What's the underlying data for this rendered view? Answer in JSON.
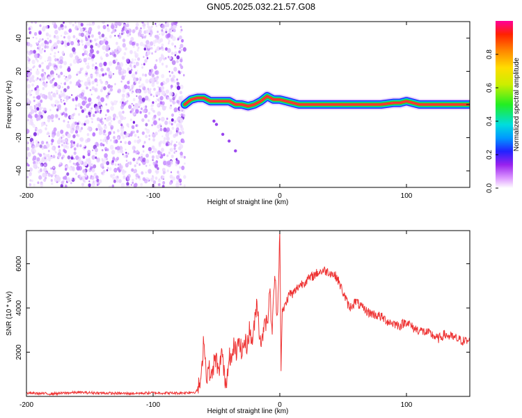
{
  "title": "GN05.2025.032.21.57.G08",
  "chart_data": [
    {
      "type": "heatmap",
      "xlabel": "Height of straight line (km)",
      "ylabel": "Frequency (Hz)",
      "xlim": [
        -200,
        150
      ],
      "ylim": [
        -50,
        50
      ],
      "x_ticks": [
        "-200",
        "-100",
        "0",
        "100"
      ],
      "y_ticks": [
        "40",
        "20",
        "0",
        "-20",
        "-40"
      ],
      "colorbar": {
        "label": "Normalized spectral amplitude",
        "range": [
          0,
          1
        ],
        "ticks": [
          "0.0",
          "0.2",
          "0.4",
          "0.6",
          "0.8"
        ]
      },
      "noise_region_x": [
        -200,
        -75
      ],
      "trace": {
        "x": [
          -75,
          -70,
          -65,
          -60,
          -55,
          -50,
          -45,
          -40,
          -35,
          -30,
          -25,
          -20,
          -15,
          -10,
          -5,
          0,
          5,
          10,
          15,
          20,
          40,
          60,
          80,
          90,
          95,
          100,
          105,
          110,
          130,
          150
        ],
        "y": [
          0,
          3,
          4,
          4,
          2,
          2,
          2,
          2,
          0,
          0,
          -1,
          0,
          2,
          5,
          3,
          3,
          2,
          1,
          0,
          0,
          0,
          0,
          0,
          1,
          1,
          2,
          1,
          0,
          0,
          0
        ]
      },
      "scattered_points": [
        {
          "x": -52,
          "y": -10
        },
        {
          "x": -50,
          "y": -12
        },
        {
          "x": -45,
          "y": -18
        },
        {
          "x": -40,
          "y": -22
        },
        {
          "x": -35,
          "y": -28
        }
      ]
    },
    {
      "type": "line",
      "xlabel": "Height of straight line (km)",
      "ylabel": "SNR (10 * v/v)",
      "xlim": [
        -200,
        150
      ],
      "ylim": [
        0,
        7500
      ],
      "x_ticks": [
        "-200",
        "-100",
        "0",
        "100"
      ],
      "y_ticks": [
        "6000",
        "4000",
        "2000"
      ],
      "color": "#ee3333",
      "series": [
        {
          "x": [
            -200,
            -180,
            -160,
            -140,
            -120,
            -100,
            -80,
            -66,
            -62,
            -60,
            -58,
            -56,
            -54,
            -52,
            -50,
            -48,
            -46,
            -44,
            -42,
            -40,
            -38,
            -36,
            -34,
            -32,
            -30,
            -28,
            -26,
            -24,
            -22,
            -20,
            -18,
            -16,
            -14,
            -12,
            -10,
            -8,
            -6,
            -4,
            -2,
            0,
            1,
            2,
            4,
            6,
            8,
            10,
            15,
            20,
            25,
            30,
            35,
            40,
            45,
            50,
            55,
            60,
            65,
            70,
            75,
            80,
            85,
            90,
            95,
            100,
            105,
            110,
            115,
            120,
            125,
            130,
            135,
            140,
            145,
            150
          ],
          "y": [
            150,
            120,
            180,
            150,
            130,
            160,
            150,
            200,
            700,
            2800,
            900,
            1300,
            800,
            1500,
            1700,
            900,
            2200,
            1000,
            600,
            2100,
            1500,
            2400,
            1800,
            2700,
            1900,
            2500,
            2300,
            3000,
            2500,
            3200,
            4400,
            2800,
            2400,
            3700,
            3100,
            4800,
            2900,
            5600,
            3500,
            7500,
            1300,
            3800,
            4100,
            4400,
            4700,
            4600,
            5000,
            5200,
            5400,
            5600,
            5700,
            5600,
            5400,
            4700,
            4000,
            4300,
            4000,
            3800,
            3700,
            3600,
            3400,
            3300,
            3200,
            3400,
            3100,
            3000,
            2900,
            2800,
            2600,
            2800,
            2700,
            2600,
            2500,
            2500
          ]
        }
      ]
    }
  ]
}
